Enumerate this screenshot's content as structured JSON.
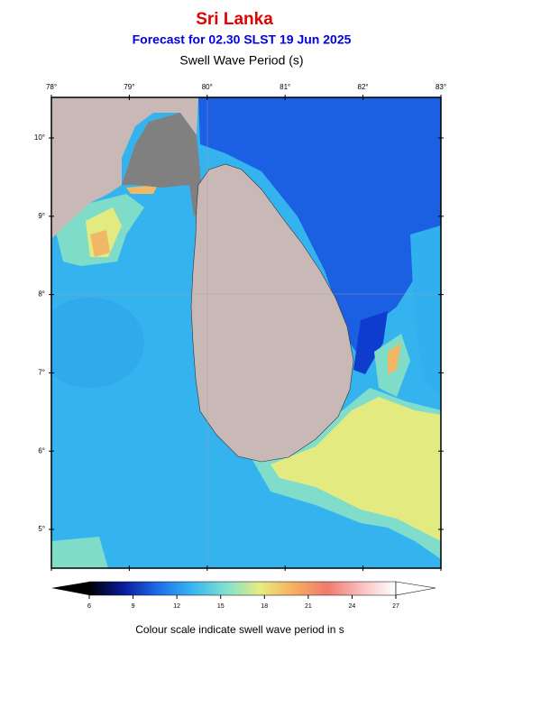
{
  "header": {
    "title": "Sri Lanka",
    "subtitle": "Forecast for  02.30 SLST 19 Jun 2025",
    "variable": "Swell Wave Period (s)"
  },
  "map": {
    "lon_labels": [
      "78°",
      "79°",
      "80°",
      "81°",
      "82°",
      "83°"
    ],
    "lat_labels": [
      "10°",
      "9°",
      "8°",
      "7°",
      "6°",
      "5°"
    ]
  },
  "colorbar": {
    "range": [
      6,
      27
    ],
    "ticks": [
      6,
      9,
      12,
      15,
      18,
      21,
      24,
      27
    ],
    "colors": [
      "#000000",
      "#0a1a9a",
      "#1e6ae8",
      "#35b5f0",
      "#7ee0d0",
      "#e6ec80",
      "#f5b060",
      "#f07a70",
      "#f8c0c0",
      "#ffffff"
    ]
  },
  "caption": "Colour scale indicate swell wave period in s"
}
